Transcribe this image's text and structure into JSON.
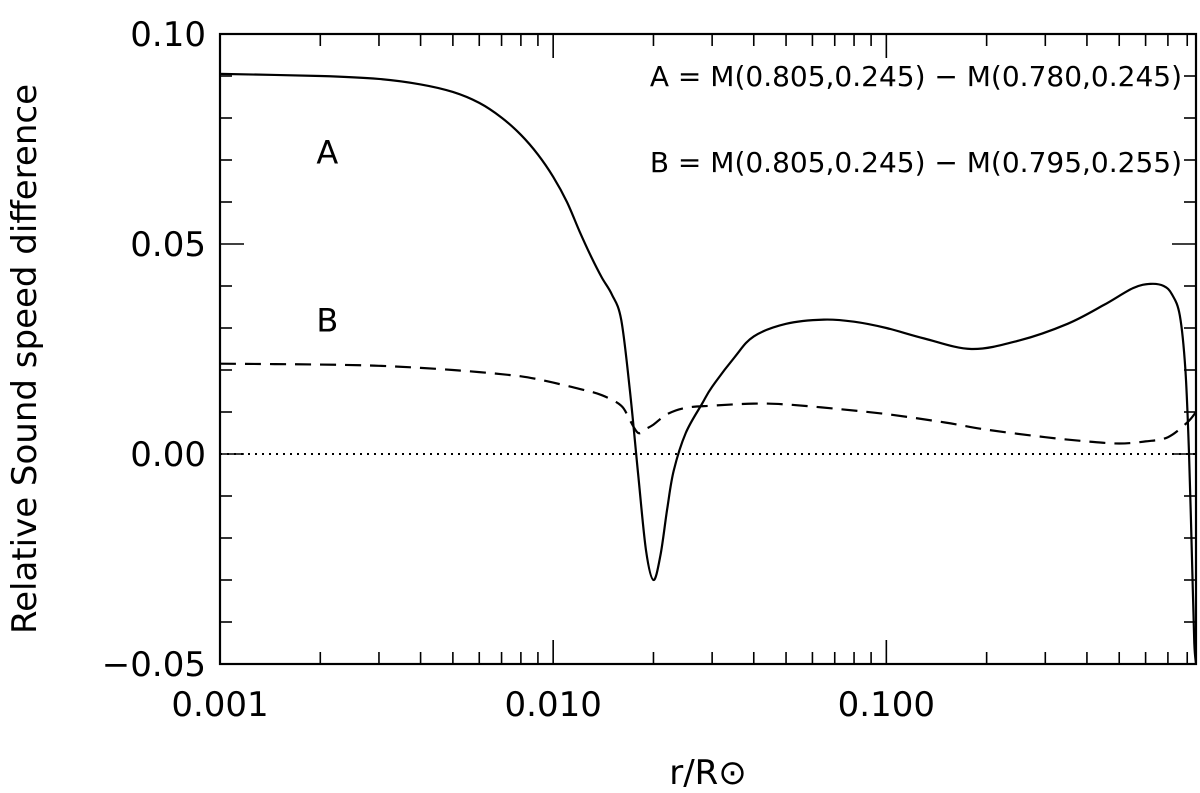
{
  "chart_data": {
    "type": "line",
    "xscale": "log",
    "xlim": [
      0.001,
      0.85
    ],
    "ylim": [
      -0.05,
      0.1
    ],
    "xlabel": "r/R⊙",
    "ylabel": "Relative Sound speed difference",
    "xticks": [
      {
        "value": 0.001,
        "label": "0.001"
      },
      {
        "value": 0.01,
        "label": "0.010"
      },
      {
        "value": 0.1,
        "label": "0.100"
      }
    ],
    "yticks": [
      {
        "value": -0.05,
        "label": "−0.05"
      },
      {
        "value": 0.0,
        "label": "0.00"
      },
      {
        "value": 0.05,
        "label": "0.05"
      },
      {
        "value": 0.1,
        "label": "0.10"
      }
    ],
    "yminor_step": 0.01,
    "legend": [
      {
        "text": "A = M(0.805,0.245) − M(0.780,0.245)"
      },
      {
        "text": "B = M(0.805,0.245) − M(0.795,0.255)"
      }
    ],
    "curve_labels": [
      {
        "text": "A",
        "x": 0.0021,
        "y": 0.072
      },
      {
        "text": "B",
        "x": 0.0021,
        "y": 0.032
      }
    ],
    "reference_line": {
      "y": 0.0,
      "style": "dotted"
    },
    "series": [
      {
        "name": "A",
        "style": "solid",
        "x": [
          0.001,
          0.002,
          0.003,
          0.004,
          0.005,
          0.006,
          0.007,
          0.008,
          0.009,
          0.01,
          0.011,
          0.012,
          0.013,
          0.014,
          0.015,
          0.016,
          0.017,
          0.018,
          0.019,
          0.02,
          0.021,
          0.022,
          0.023,
          0.025,
          0.028,
          0.03,
          0.035,
          0.04,
          0.05,
          0.065,
          0.08,
          0.1,
          0.13,
          0.18,
          0.25,
          0.35,
          0.45,
          0.55,
          0.62,
          0.68,
          0.72,
          0.76,
          0.79,
          0.81,
          0.83,
          0.84,
          0.85
        ],
        "y": [
          0.0905,
          0.09,
          0.0893,
          0.088,
          0.0862,
          0.0836,
          0.0801,
          0.076,
          0.0713,
          0.066,
          0.06,
          0.053,
          0.047,
          0.042,
          0.038,
          0.032,
          0.015,
          -0.005,
          -0.023,
          -0.03,
          -0.024,
          -0.013,
          -0.004,
          0.005,
          0.012,
          0.016,
          0.023,
          0.028,
          0.031,
          0.032,
          0.0315,
          0.03,
          0.0275,
          0.025,
          0.027,
          0.031,
          0.0355,
          0.0395,
          0.0405,
          0.04,
          0.038,
          0.033,
          0.02,
          0.0,
          -0.03,
          -0.045,
          -0.05
        ]
      },
      {
        "name": "B",
        "style": "dashed",
        "x": [
          0.001,
          0.002,
          0.003,
          0.004,
          0.005,
          0.006,
          0.007,
          0.008,
          0.009,
          0.01,
          0.012,
          0.014,
          0.016,
          0.017,
          0.018,
          0.019,
          0.02,
          0.022,
          0.025,
          0.03,
          0.04,
          0.05,
          0.07,
          0.1,
          0.15,
          0.2,
          0.3,
          0.4,
          0.5,
          0.6,
          0.7,
          0.8,
          0.85
        ],
        "y": [
          0.0215,
          0.0213,
          0.021,
          0.0205,
          0.02,
          0.0195,
          0.019,
          0.0185,
          0.0178,
          0.017,
          0.0155,
          0.014,
          0.0115,
          0.008,
          0.005,
          0.006,
          0.007,
          0.0095,
          0.011,
          0.0115,
          0.012,
          0.0118,
          0.0108,
          0.0095,
          0.0075,
          0.0058,
          0.004,
          0.003,
          0.0025,
          0.003,
          0.004,
          0.0075,
          0.01
        ]
      }
    ]
  }
}
